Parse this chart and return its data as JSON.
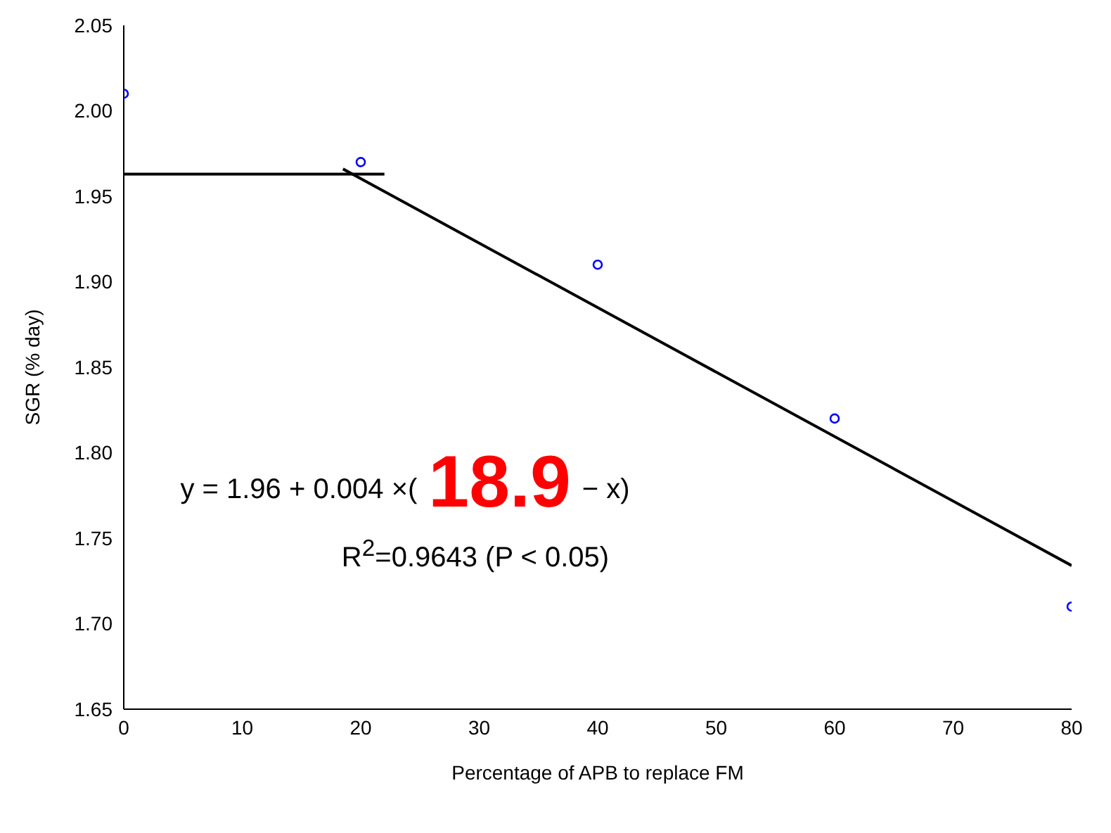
{
  "chart_data": {
    "type": "scatter",
    "xlabel": "Percentage of  APB to replace FM",
    "ylabel": "SGR (% day)",
    "xlim": [
      0,
      80
    ],
    "xticks": [
      0,
      10,
      20,
      30,
      40,
      50,
      60,
      70,
      80
    ],
    "ylim": [
      1.65,
      2.05
    ],
    "yticks": [
      {
        "value": 1.65,
        "label": "1.65"
      },
      {
        "value": 1.7,
        "label": "1.70"
      },
      {
        "value": 1.75,
        "label": "1.75"
      },
      {
        "value": 1.8,
        "label": "1.80"
      },
      {
        "value": 1.85,
        "label": "1.85"
      },
      {
        "value": 1.9,
        "label": "1.90"
      },
      {
        "value": 1.95,
        "label": "1.95"
      },
      {
        "value": 2,
        "label": "2.00"
      },
      {
        "value": 2.05,
        "label": "2.05"
      }
    ],
    "grid": false,
    "legend": false,
    "marker": "circle",
    "series": [
      {
        "color": "#0000ff",
        "x": [
          0,
          20,
          40,
          60,
          80
        ],
        "values": [
          2.01,
          1.97,
          1.91,
          1.82,
          1.71
        ]
      },
      {
        "type": "line",
        "color": "#000000",
        "marker": "none",
        "x": [
          0,
          22
        ],
        "values": [
          1.963,
          1.963
        ]
      },
      {
        "type": "line",
        "color": "#000000",
        "marker": "none",
        "x": [
          18.5,
          80
        ],
        "values": [
          1.966,
          1.734
        ]
      }
    ],
    "annotations": [
      "y = 1.96 + 0.004 ×(",
      "18.9",
      "− x)",
      "R$^{2}$=0.9643 (P < 0.05)"
    ]
  }
}
